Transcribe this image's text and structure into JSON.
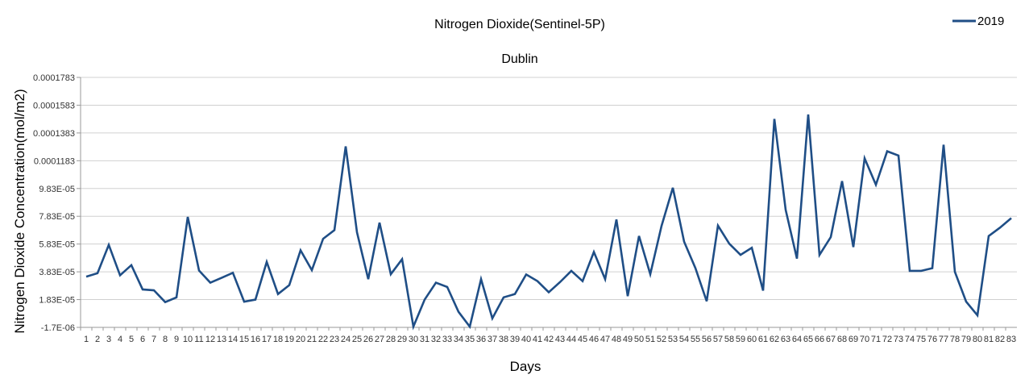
{
  "chart_data": {
    "type": "line",
    "title": "Nitrogen Dioxide(Sentinel-5P)",
    "subtitle": "Dublin",
    "xlabel": "Days",
    "ylabel": "Nitrogen Dioxide Concentration(mol/m2)",
    "legend": {
      "placement": "top-right"
    },
    "grid": true,
    "colors": {
      "series": "#1f4e86",
      "grid": "#d0d0d0",
      "axis": "#999999"
    },
    "ylim": [
      -1.7e-06,
      0.0001783
    ],
    "y_tick_values": [
      -1.7e-06,
      1.83e-05,
      3.83e-05,
      5.83e-05,
      7.83e-05,
      9.83e-05,
      0.0001183,
      0.0001383,
      0.0001583,
      0.0001783
    ],
    "y_tick_labels": [
      "-1.7E-06",
      "1.83E-05",
      "3.83E-05",
      "5.83E-05",
      "7.83E-05",
      "9.83E-05",
      "0.0001183",
      "0.0001383",
      "0.0001583",
      "0.0001783"
    ],
    "x": [
      1,
      2,
      3,
      4,
      5,
      6,
      7,
      8,
      9,
      10,
      11,
      12,
      13,
      14,
      15,
      16,
      17,
      18,
      19,
      20,
      21,
      22,
      23,
      24,
      25,
      26,
      27,
      28,
      29,
      30,
      31,
      32,
      33,
      34,
      35,
      36,
      37,
      38,
      39,
      40,
      41,
      42,
      43,
      44,
      45,
      46,
      47,
      48,
      49,
      50,
      51,
      52,
      53,
      54,
      55,
      56,
      57,
      58,
      59,
      60,
      61,
      62,
      63,
      64,
      65,
      66,
      67,
      68,
      69,
      70,
      71,
      72,
      73,
      74,
      75,
      76,
      77,
      78,
      79,
      80,
      81,
      82,
      83
    ],
    "series": [
      {
        "name": "2019",
        "values": [
          3.48e-05,
          3.73e-05,
          5.77e-05,
          3.58e-05,
          4.31e-05,
          2.56e-05,
          2.5e-05,
          1.65e-05,
          1.99e-05,
          7.78e-05,
          3.92e-05,
          3.05e-05,
          3.4e-05,
          3.76e-05,
          1.68e-05,
          1.83e-05,
          4.54e-05,
          2.23e-05,
          2.87e-05,
          5.38e-05,
          3.95e-05,
          6.21e-05,
          6.83e-05,
          0.0001286,
          6.68e-05,
          3.3e-05,
          7.37e-05,
          3.66e-05,
          4.74e-05,
          -1.2e-06,
          1.83e-05,
          3.05e-05,
          2.74e-05,
          9.5e-06,
          -1.2e-06,
          3.3e-05,
          4.8e-06,
          1.99e-05,
          2.23e-05,
          3.64e-05,
          3.16e-05,
          2.36e-05,
          3.09e-05,
          3.9e-05,
          3.16e-05,
          5.26e-05,
          3.3e-05,
          7.6e-05,
          2.08e-05,
          6.41e-05,
          3.66e-05,
          7.14e-05,
          9.88e-05,
          6e-05,
          4.1e-05,
          1.71e-05,
          7.16e-05,
          5.86e-05,
          5.05e-05,
          5.56e-05,
          2.48e-05,
          0.0001484,
          8.3e-05,
          4.78e-05,
          0.0001516,
          5.05e-05,
          6.33e-05,
          0.0001036,
          5.61e-05,
          0.00012,
          0.000101,
          0.0001251,
          0.000122,
          3.9e-05,
          3.9e-05,
          4.09e-05,
          0.0001298,
          3.83e-05,
          1.68e-05,
          7e-06,
          6.41e-05,
          7.01e-05,
          7.7e-05
        ]
      }
    ]
  }
}
